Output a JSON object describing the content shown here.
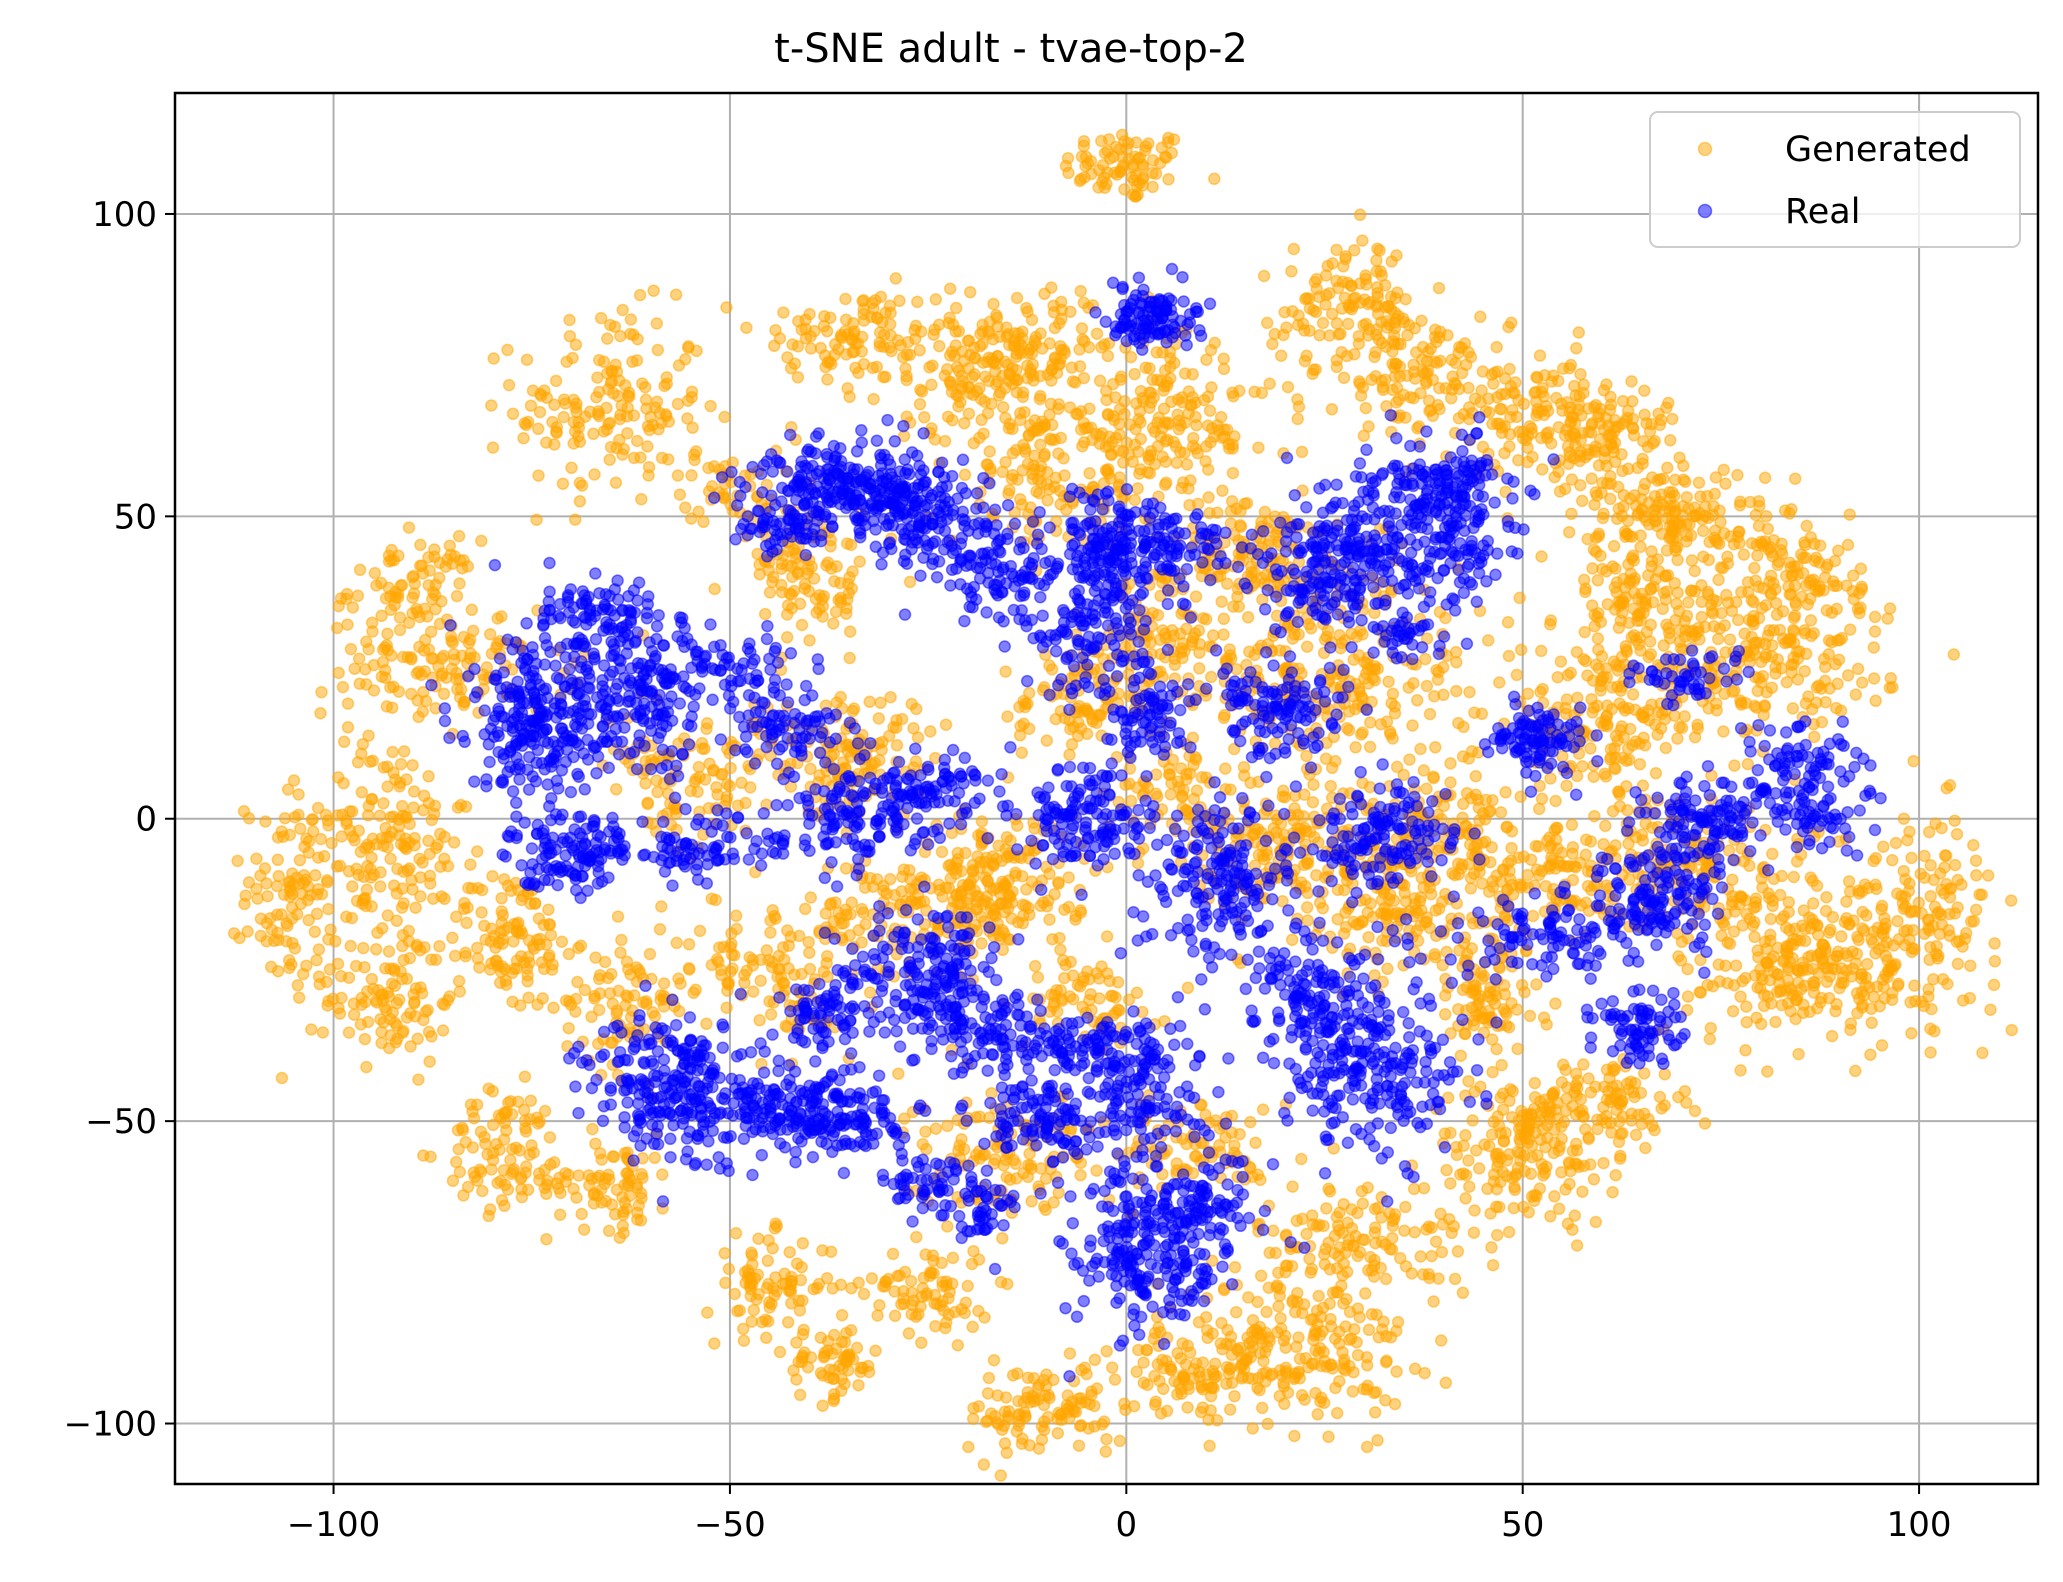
{
  "chart_data": {
    "type": "scatter",
    "title": "t-SNE adult - tvae-top-2",
    "xlabel": "",
    "ylabel": "",
    "xlim": [
      -120,
      115
    ],
    "ylim": [
      -110,
      120
    ],
    "x_ticks": [
      -100,
      -50,
      0,
      50,
      100
    ],
    "y_ticks": [
      -100,
      -50,
      0,
      50,
      100
    ],
    "x_tick_labels": [
      "−100",
      "−50",
      "0",
      "50",
      "100"
    ],
    "y_tick_labels": [
      "−100",
      "−50",
      "0",
      "50",
      "100"
    ],
    "grid": true,
    "legend_position": "top-right",
    "point_alpha": 0.5,
    "series": [
      {
        "name": "Generated",
        "color": "#FFA500",
        "clusters": [
          {
            "cx": 0,
            "cy": 108,
            "sx": 4,
            "sy": 3,
            "n": 80
          },
          {
            "cx": -35,
            "cy": 80,
            "sx": 6,
            "sy": 4,
            "n": 90
          },
          {
            "cx": -65,
            "cy": 68,
            "sx": 6,
            "sy": 8,
            "n": 160
          },
          {
            "cx": -50,
            "cy": 55,
            "sx": 3,
            "sy": 3,
            "n": 40
          },
          {
            "cx": -90,
            "cy": 38,
            "sx": 4,
            "sy": 4,
            "n": 80
          },
          {
            "cx": -85,
            "cy": 25,
            "sx": 8,
            "sy": 4,
            "n": 120
          },
          {
            "cx": -105,
            "cy": -12,
            "sx": 3,
            "sy": 8,
            "n": 110
          },
          {
            "cx": -93,
            "cy": -5,
            "sx": 5,
            "sy": 10,
            "n": 160
          },
          {
            "cx": -93,
            "cy": -30,
            "sx": 4,
            "sy": 5,
            "n": 90
          },
          {
            "cx": -78,
            "cy": -20,
            "sx": 4,
            "sy": 6,
            "n": 110
          },
          {
            "cx": -78,
            "cy": -55,
            "sx": 4,
            "sy": 5,
            "n": 90
          },
          {
            "cx": -65,
            "cy": -60,
            "sx": 4,
            "sy": 4,
            "n": 80
          },
          {
            "cx": -63,
            "cy": -30,
            "sx": 4,
            "sy": 6,
            "n": 90
          },
          {
            "cx": -45,
            "cy": -77,
            "sx": 4,
            "sy": 4,
            "n": 80
          },
          {
            "cx": -37,
            "cy": -90,
            "sx": 3,
            "sy": 3,
            "n": 60
          },
          {
            "cx": -25,
            "cy": -78,
            "sx": 4,
            "sy": 4,
            "n": 80
          },
          {
            "cx": -10,
            "cy": -98,
            "sx": 5,
            "sy": 4,
            "n": 110
          },
          {
            "cx": 8,
            "cy": -92,
            "sx": 4,
            "sy": 3,
            "n": 60
          },
          {
            "cx": 20,
            "cy": -88,
            "sx": 8,
            "sy": 6,
            "n": 220
          },
          {
            "cx": 30,
            "cy": -70,
            "sx": 7,
            "sy": 5,
            "n": 140
          },
          {
            "cx": 50,
            "cy": -55,
            "sx": 6,
            "sy": 6,
            "n": 160
          },
          {
            "cx": 60,
            "cy": -47,
            "sx": 5,
            "sy": 4,
            "n": 110
          },
          {
            "cx": 45,
            "cy": -30,
            "sx": 4,
            "sy": 5,
            "n": 90
          },
          {
            "cx": -15,
            "cy": 75,
            "sx": 9,
            "sy": 6,
            "n": 260
          },
          {
            "cx": 5,
            "cy": 65,
            "sx": 7,
            "sy": 6,
            "n": 180
          },
          {
            "cx": -10,
            "cy": 55,
            "sx": 6,
            "sy": 5,
            "n": 120
          },
          {
            "cx": 28,
            "cy": 85,
            "sx": 4,
            "sy": 5,
            "n": 100
          },
          {
            "cx": 35,
            "cy": 75,
            "sx": 5,
            "sy": 5,
            "n": 110
          },
          {
            "cx": 50,
            "cy": 68,
            "sx": 6,
            "sy": 5,
            "n": 140
          },
          {
            "cx": 60,
            "cy": 62,
            "sx": 5,
            "sy": 5,
            "n": 120
          },
          {
            "cx": 70,
            "cy": 50,
            "sx": 5,
            "sy": 4,
            "n": 130
          },
          {
            "cx": 85,
            "cy": 40,
            "sx": 4,
            "sy": 6,
            "n": 110
          },
          {
            "cx": 80,
            "cy": 25,
            "sx": 8,
            "sy": 6,
            "n": 200
          },
          {
            "cx": 65,
            "cy": 35,
            "sx": 5,
            "sy": 6,
            "n": 150
          },
          {
            "cx": 60,
            "cy": 15,
            "sx": 6,
            "sy": 6,
            "n": 150
          },
          {
            "cx": 100,
            "cy": -15,
            "sx": 5,
            "sy": 8,
            "n": 150
          },
          {
            "cx": 90,
            "cy": -25,
            "sx": 6,
            "sy": 5,
            "n": 140
          },
          {
            "cx": 80,
            "cy": -20,
            "sx": 6,
            "sy": 8,
            "n": 160
          },
          {
            "cx": 70,
            "cy": -5,
            "sx": 5,
            "sy": 5,
            "n": 100
          },
          {
            "cx": 55,
            "cy": -10,
            "sx": 6,
            "sy": 6,
            "n": 140
          },
          {
            "cx": 25,
            "cy": 25,
            "sx": 10,
            "sy": 10,
            "n": 320
          },
          {
            "cx": 15,
            "cy": 45,
            "sx": 6,
            "sy": 4,
            "n": 130
          },
          {
            "cx": 20,
            "cy": -5,
            "sx": 8,
            "sy": 6,
            "n": 200
          },
          {
            "cx": 35,
            "cy": -15,
            "sx": 7,
            "sy": 5,
            "n": 140
          },
          {
            "cx": -35,
            "cy": 10,
            "sx": 6,
            "sy": 5,
            "n": 140
          },
          {
            "cx": -25,
            "cy": -15,
            "sx": 7,
            "sy": 5,
            "n": 160
          },
          {
            "cx": -15,
            "cy": -10,
            "sx": 6,
            "sy": 6,
            "n": 140
          },
          {
            "cx": -40,
            "cy": 40,
            "sx": 4,
            "sy": 6,
            "n": 110
          },
          {
            "cx": -5,
            "cy": -30,
            "sx": 4,
            "sy": 4,
            "n": 70
          },
          {
            "cx": -15,
            "cy": -55,
            "sx": 6,
            "sy": 5,
            "n": 130
          },
          {
            "cx": -45,
            "cy": -25,
            "sx": 6,
            "sy": 6,
            "n": 120
          },
          {
            "cx": -55,
            "cy": 5,
            "sx": 5,
            "sy": 5,
            "n": 100
          },
          {
            "cx": -5,
            "cy": 20,
            "sx": 5,
            "sy": 5,
            "n": 100
          },
          {
            "cx": 5,
            "cy": 5,
            "sx": 4,
            "sy": 4,
            "n": 60
          },
          {
            "cx": 10,
            "cy": -55,
            "sx": 5,
            "sy": 4,
            "n": 80
          },
          {
            "cx": 40,
            "cy": 0,
            "sx": 5,
            "sy": 5,
            "n": 110
          },
          {
            "cx": 5,
            "cy": 30,
            "sx": 4,
            "sy": 4,
            "n": 70
          }
        ]
      },
      {
        "name": "Real",
        "color": "#0000FF",
        "clusters": [
          {
            "cx": 3,
            "cy": 83,
            "sx": 3,
            "sy": 2.5,
            "n": 110
          },
          {
            "cx": -35,
            "cy": 55,
            "sx": 6,
            "sy": 4,
            "n": 240
          },
          {
            "cx": -25,
            "cy": 50,
            "sx": 5,
            "sy": 4,
            "n": 150
          },
          {
            "cx": -43,
            "cy": 48,
            "sx": 3,
            "sy": 2,
            "n": 50
          },
          {
            "cx": -15,
            "cy": 40,
            "sx": 4,
            "sy": 4,
            "n": 100
          },
          {
            "cx": -3,
            "cy": 45,
            "sx": 3,
            "sy": 5,
            "n": 120
          },
          {
            "cx": 5,
            "cy": 45,
            "sx": 4,
            "sy": 4,
            "n": 110
          },
          {
            "cx": -5,
            "cy": 30,
            "sx": 4,
            "sy": 5,
            "n": 110
          },
          {
            "cx": 3,
            "cy": 18,
            "sx": 3,
            "sy": 4,
            "n": 80
          },
          {
            "cx": -75,
            "cy": 15,
            "sx": 4,
            "sy": 7,
            "n": 220
          },
          {
            "cx": -62,
            "cy": 20,
            "sx": 5,
            "sy": 7,
            "n": 240
          },
          {
            "cx": -68,
            "cy": 35,
            "sx": 4,
            "sy": 2,
            "n": 60
          },
          {
            "cx": -70,
            "cy": -5,
            "sx": 4,
            "sy": 3,
            "n": 120
          },
          {
            "cx": -50,
            "cy": 25,
            "sx": 4,
            "sy": 3,
            "n": 60
          },
          {
            "cx": -42,
            "cy": 15,
            "sx": 4,
            "sy": 3,
            "n": 80
          },
          {
            "cx": -53,
            "cy": -5,
            "sx": 5,
            "sy": 3,
            "n": 80
          },
          {
            "cx": -35,
            "cy": 0,
            "sx": 5,
            "sy": 4,
            "n": 120
          },
          {
            "cx": -25,
            "cy": 5,
            "sx": 4,
            "sy": 3,
            "n": 90
          },
          {
            "cx": -5,
            "cy": 0,
            "sx": 4,
            "sy": 5,
            "n": 140
          },
          {
            "cx": 12,
            "cy": -10,
            "sx": 5,
            "sy": 7,
            "n": 200
          },
          {
            "cx": 20,
            "cy": 18,
            "sx": 4,
            "sy": 4,
            "n": 120
          },
          {
            "cx": 28,
            "cy": 45,
            "sx": 5,
            "sy": 5,
            "n": 150
          },
          {
            "cx": 25,
            "cy": 38,
            "sx": 4,
            "sy": 3,
            "n": 80
          },
          {
            "cx": 40,
            "cy": 55,
            "sx": 5,
            "sy": 4,
            "n": 160
          },
          {
            "cx": 40,
            "cy": 45,
            "sx": 4,
            "sy": 4,
            "n": 100
          },
          {
            "cx": 35,
            "cy": 30,
            "sx": 3,
            "sy": 2,
            "n": 40
          },
          {
            "cx": 52,
            "cy": 13,
            "sx": 3,
            "sy": 3,
            "n": 100
          },
          {
            "cx": 33,
            "cy": -3,
            "sx": 5,
            "sy": 4,
            "n": 150
          },
          {
            "cx": 70,
            "cy": 23,
            "sx": 3,
            "sy": 2,
            "n": 50
          },
          {
            "cx": 73,
            "cy": 0,
            "sx": 4,
            "sy": 4,
            "n": 110
          },
          {
            "cx": 85,
            "cy": 5,
            "sx": 4,
            "sy": 5,
            "n": 140
          },
          {
            "cx": 67,
            "cy": -13,
            "sx": 5,
            "sy": 4,
            "n": 150
          },
          {
            "cx": 53,
            "cy": -20,
            "sx": 5,
            "sy": 3,
            "n": 90
          },
          {
            "cx": 65,
            "cy": -35,
            "sx": 3,
            "sy": 3,
            "n": 80
          },
          {
            "cx": 30,
            "cy": -40,
            "sx": 6,
            "sy": 8,
            "n": 280
          },
          {
            "cx": 22,
            "cy": -28,
            "sx": 3,
            "sy": 4,
            "n": 80
          },
          {
            "cx": -25,
            "cy": -25,
            "sx": 5,
            "sy": 5,
            "n": 180
          },
          {
            "cx": -18,
            "cy": -35,
            "sx": 4,
            "sy": 4,
            "n": 100
          },
          {
            "cx": -5,
            "cy": -38,
            "sx": 4,
            "sy": 3,
            "n": 80
          },
          {
            "cx": 2,
            "cy": -45,
            "sx": 4,
            "sy": 6,
            "n": 150
          },
          {
            "cx": -12,
            "cy": -50,
            "sx": 4,
            "sy": 4,
            "n": 100
          },
          {
            "cx": -25,
            "cy": -60,
            "sx": 3,
            "sy": 3,
            "n": 60
          },
          {
            "cx": -18,
            "cy": -65,
            "sx": 2,
            "sy": 3,
            "n": 40
          },
          {
            "cx": 2,
            "cy": -72,
            "sx": 5,
            "sy": 7,
            "n": 230
          },
          {
            "cx": 10,
            "cy": -65,
            "sx": 4,
            "sy": 4,
            "n": 80
          },
          {
            "cx": -57,
            "cy": -45,
            "sx": 5,
            "sy": 6,
            "n": 240
          },
          {
            "cx": -43,
            "cy": -48,
            "sx": 5,
            "sy": 4,
            "n": 150
          },
          {
            "cx": -38,
            "cy": -32,
            "sx": 3,
            "sy": 3,
            "n": 70
          },
          {
            "cx": -35,
            "cy": -50,
            "sx": 4,
            "sy": 3,
            "n": 90
          }
        ]
      }
    ]
  }
}
